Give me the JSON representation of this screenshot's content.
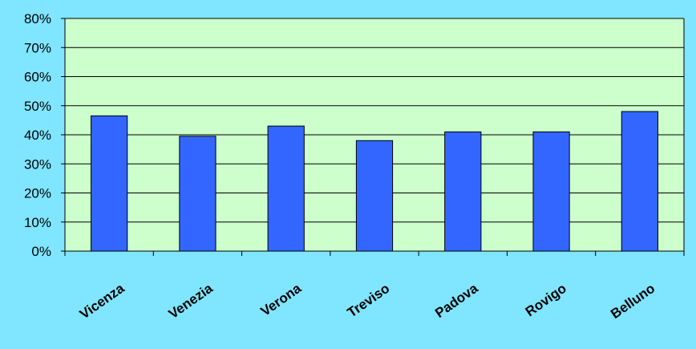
{
  "colors": {
    "page_background": "#80e5ff",
    "plot_background": "#ccffcc",
    "bar_fill": "#3366ff",
    "bar_stroke": "#000000",
    "grid": "#000000"
  },
  "chart_data": {
    "type": "bar",
    "title": "",
    "xlabel": "",
    "ylabel": "",
    "categories": [
      "Vicenza",
      "Venezia",
      "Verona",
      "Treviso",
      "Padova",
      "Rovigo",
      "Belluno"
    ],
    "values": [
      46.5,
      39.5,
      43,
      38,
      41,
      41,
      48
    ],
    "value_unit": "%",
    "ylim": [
      0,
      80
    ],
    "yticks": [
      0,
      10,
      20,
      30,
      40,
      50,
      60,
      70,
      80
    ],
    "ytick_labels": [
      "0%",
      "10%",
      "20%",
      "30%",
      "40%",
      "50%",
      "60%",
      "70%",
      "80%"
    ],
    "grid": true,
    "legend": "none",
    "xtick_rotation": "diagonal"
  }
}
